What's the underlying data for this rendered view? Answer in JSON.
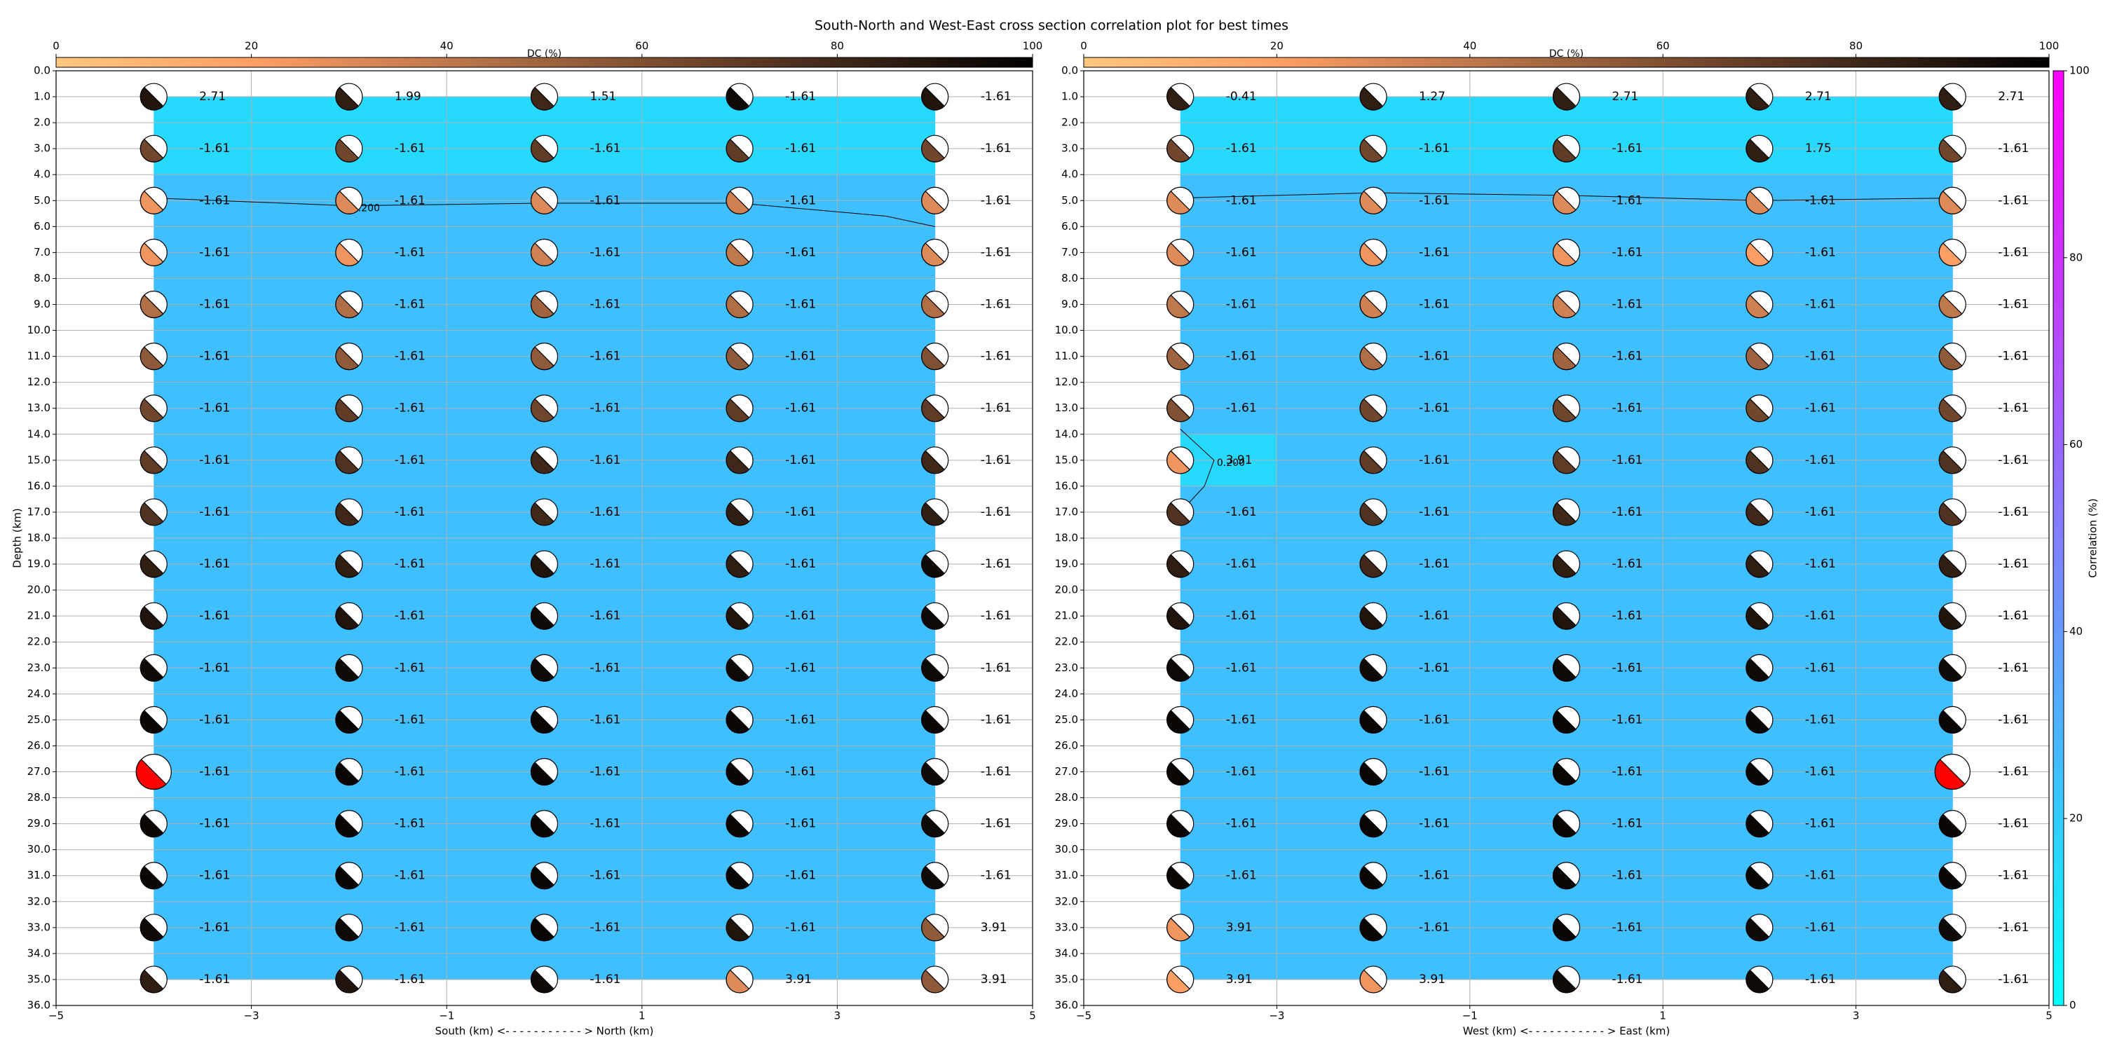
{
  "title": "South-North and West-East cross section correlation plot for best times",
  "chart_data": [
    {
      "type": "beachball_section",
      "xlabel": "South (km) <- - - - - - - - - - - > North (km)",
      "ylabel": "Depth (km)",
      "xlim": [
        -5,
        5
      ],
      "xticks": [
        {
          "value": -5,
          "label": "−5"
        },
        {
          "value": -3,
          "label": "−3"
        },
        {
          "value": -1,
          "label": "−1"
        },
        1,
        3,
        5
      ],
      "ylim": [
        36,
        0
      ],
      "yticks": [
        {
          "value": 0,
          "label": "0.0"
        },
        {
          "value": 1,
          "label": "1.0"
        },
        {
          "value": 2,
          "label": "2.0"
        },
        {
          "value": 3,
          "label": "3.0"
        },
        {
          "value": 4,
          "label": "4.0"
        },
        {
          "value": 5,
          "label": "5.0"
        },
        {
          "value": 6,
          "label": "6.0"
        },
        {
          "value": 7,
          "label": "7.0"
        },
        {
          "value": 8,
          "label": "8.0"
        },
        {
          "value": 9,
          "label": "9.0"
        },
        {
          "value": 10,
          "label": "10.0"
        },
        {
          "value": 11,
          "label": "11.0"
        },
        {
          "value": 12,
          "label": "12.0"
        },
        {
          "value": 13,
          "label": "13.0"
        },
        {
          "value": 14,
          "label": "14.0"
        },
        {
          "value": 15,
          "label": "15.0"
        },
        {
          "value": 16,
          "label": "16.0"
        },
        {
          "value": 17,
          "label": "17.0"
        },
        {
          "value": 18,
          "label": "18.0"
        },
        {
          "value": 19,
          "label": "19.0"
        },
        {
          "value": 20,
          "label": "20.0"
        },
        {
          "value": 21,
          "label": "21.0"
        },
        {
          "value": 22,
          "label": "22.0"
        },
        {
          "value": 23,
          "label": "23.0"
        },
        {
          "value": 24,
          "label": "24.0"
        },
        {
          "value": 25,
          "label": "25.0"
        },
        {
          "value": 26,
          "label": "26.0"
        },
        {
          "value": 27,
          "label": "27.0"
        },
        {
          "value": 28,
          "label": "28.0"
        },
        {
          "value": 29,
          "label": "29.0"
        },
        {
          "value": 30,
          "label": "30.0"
        },
        {
          "value": 31,
          "label": "31.0"
        },
        {
          "value": 32,
          "label": "32.0"
        },
        {
          "value": 33,
          "label": "33.0"
        },
        {
          "value": 34,
          "label": "34.0"
        },
        {
          "value": 35,
          "label": "35.0"
        },
        {
          "value": 36,
          "label": "36.0"
        }
      ],
      "grid": true,
      "x": [
        -4,
        -2,
        0,
        2,
        4
      ],
      "depths": [
        1,
        3,
        5,
        7,
        9,
        11,
        13,
        15,
        17,
        19,
        21,
        23,
        25,
        27,
        29,
        31,
        33,
        35
      ],
      "values": [
        [
          2.71,
          1.99,
          1.51,
          -1.61,
          -1.61
        ],
        [
          -1.61,
          -1.61,
          -1.61,
          -1.61,
          -1.61
        ],
        [
          -1.61,
          -1.61,
          -1.61,
          -1.61,
          -1.61
        ],
        [
          -1.61,
          -1.61,
          -1.61,
          -1.61,
          -1.61
        ],
        [
          -1.61,
          -1.61,
          -1.61,
          -1.61,
          -1.61
        ],
        [
          -1.61,
          -1.61,
          -1.61,
          -1.61,
          -1.61
        ],
        [
          -1.61,
          -1.61,
          -1.61,
          -1.61,
          -1.61
        ],
        [
          -1.61,
          -1.61,
          -1.61,
          -1.61,
          -1.61
        ],
        [
          -1.61,
          -1.61,
          -1.61,
          -1.61,
          -1.61
        ],
        [
          -1.61,
          -1.61,
          -1.61,
          -1.61,
          -1.61
        ],
        [
          -1.61,
          -1.61,
          -1.61,
          -1.61,
          -1.61
        ],
        [
          -1.61,
          -1.61,
          -1.61,
          -1.61,
          -1.61
        ],
        [
          -1.61,
          -1.61,
          -1.61,
          -1.61,
          -1.61
        ],
        [
          -1.61,
          -1.61,
          -1.61,
          -1.61,
          -1.61
        ],
        [
          -1.61,
          -1.61,
          -1.61,
          -1.61,
          -1.61
        ],
        [
          -1.61,
          -1.61,
          -1.61,
          -1.61,
          -1.61
        ],
        [
          -1.61,
          -1.61,
          -1.61,
          -1.61,
          3.91
        ],
        [
          -1.61,
          -1.61,
          -1.61,
          3.91,
          3.91
        ]
      ],
      "dc": [
        [
          90,
          85,
          80,
          95,
          90
        ],
        [
          65,
          65,
          70,
          70,
          65
        ],
        [
          25,
          30,
          30,
          35,
          30
        ],
        [
          25,
          25,
          35,
          40,
          30
        ],
        [
          45,
          45,
          50,
          45,
          45
        ],
        [
          55,
          55,
          55,
          55,
          60
        ],
        [
          65,
          70,
          65,
          70,
          70
        ],
        [
          70,
          75,
          80,
          80,
          80
        ],
        [
          75,
          80,
          80,
          85,
          85
        ],
        [
          85,
          85,
          90,
          85,
          95
        ],
        [
          90,
          90,
          95,
          90,
          95
        ],
        [
          95,
          95,
          95,
          95,
          95
        ],
        [
          97,
          97,
          97,
          97,
          97
        ],
        [
          97,
          97,
          97,
          97,
          95
        ],
        [
          97,
          97,
          97,
          97,
          95
        ],
        [
          97,
          97,
          97,
          97,
          95
        ],
        [
          95,
          95,
          97,
          90,
          55
        ],
        [
          85,
          90,
          95,
          30,
          55
        ]
      ],
      "correlation": [
        [
          15,
          15,
          15,
          15,
          15
        ],
        [
          15,
          15,
          15,
          15,
          15
        ],
        [
          25,
          25,
          25,
          25,
          25
        ],
        [
          25,
          25,
          25,
          25,
          25
        ],
        [
          25,
          25,
          25,
          25,
          25
        ],
        [
          25,
          25,
          25,
          25,
          25
        ],
        [
          25,
          25,
          25,
          25,
          25
        ],
        [
          25,
          25,
          25,
          25,
          25
        ],
        [
          25,
          25,
          25,
          25,
          25
        ],
        [
          25,
          25,
          25,
          25,
          25
        ],
        [
          25,
          25,
          25,
          25,
          25
        ],
        [
          25,
          25,
          25,
          25,
          25
        ],
        [
          25,
          25,
          25,
          25,
          25
        ],
        [
          25,
          25,
          25,
          25,
          25
        ],
        [
          25,
          25,
          25,
          25,
          25
        ],
        [
          25,
          25,
          25,
          25,
          25
        ],
        [
          25,
          25,
          25,
          25,
          25
        ],
        [
          25,
          25,
          25,
          25,
          25
        ]
      ],
      "field_cmap": "cool",
      "highlight": {
        "x": -4,
        "depth": 27,
        "color": "#ff0000"
      },
      "contours": [
        {
          "label": "0.200",
          "x": [
            -4,
            -2,
            0,
            2,
            3.5,
            4
          ],
          "y": [
            4.9,
            5.2,
            5.1,
            5.1,
            5.6,
            6.0
          ]
        }
      ],
      "dc_colorbar": {
        "label": "DC (%)",
        "lim": [
          0,
          100
        ],
        "ticks": [
          0,
          20,
          40,
          60,
          80,
          100
        ],
        "cmap": "copper_r"
      }
    },
    {
      "type": "beachball_section",
      "xlabel": "West (km) <- - - - - - - - - - - > East (km)",
      "xlim": [
        -5,
        5
      ],
      "xticks": [
        {
          "value": -5,
          "label": "−5"
        },
        {
          "value": -3,
          "label": "−3"
        },
        {
          "value": -1,
          "label": "−1"
        },
        1,
        3,
        5
      ],
      "ylim": [
        36,
        0
      ],
      "yticks": [
        {
          "value": 0,
          "label": "0.0"
        },
        {
          "value": 1,
          "label": "1.0"
        },
        {
          "value": 2,
          "label": "2.0"
        },
        {
          "value": 3,
          "label": "3.0"
        },
        {
          "value": 4,
          "label": "4.0"
        },
        {
          "value": 5,
          "label": "5.0"
        },
        {
          "value": 6,
          "label": "6.0"
        },
        {
          "value": 7,
          "label": "7.0"
        },
        {
          "value": 8,
          "label": "8.0"
        },
        {
          "value": 9,
          "label": "9.0"
        },
        {
          "value": 10,
          "label": "10.0"
        },
        {
          "value": 11,
          "label": "11.0"
        },
        {
          "value": 12,
          "label": "12.0"
        },
        {
          "value": 13,
          "label": "13.0"
        },
        {
          "value": 14,
          "label": "14.0"
        },
        {
          "value": 15,
          "label": "15.0"
        },
        {
          "value": 16,
          "label": "16.0"
        },
        {
          "value": 17,
          "label": "17.0"
        },
        {
          "value": 18,
          "label": "18.0"
        },
        {
          "value": 19,
          "label": "19.0"
        },
        {
          "value": 20,
          "label": "20.0"
        },
        {
          "value": 21,
          "label": "21.0"
        },
        {
          "value": 22,
          "label": "22.0"
        },
        {
          "value": 23,
          "label": "23.0"
        },
        {
          "value": 24,
          "label": "24.0"
        },
        {
          "value": 25,
          "label": "25.0"
        },
        {
          "value": 26,
          "label": "26.0"
        },
        {
          "value": 27,
          "label": "27.0"
        },
        {
          "value": 28,
          "label": "28.0"
        },
        {
          "value": 29,
          "label": "29.0"
        },
        {
          "value": 30,
          "label": "30.0"
        },
        {
          "value": 31,
          "label": "31.0"
        },
        {
          "value": 32,
          "label": "32.0"
        },
        {
          "value": 33,
          "label": "33.0"
        },
        {
          "value": 34,
          "label": "34.0"
        },
        {
          "value": 35,
          "label": "35.0"
        },
        {
          "value": 36,
          "label": "36.0"
        }
      ],
      "grid": true,
      "x": [
        -4,
        -2,
        0,
        2,
        4
      ],
      "depths": [
        1,
        3,
        5,
        7,
        9,
        11,
        13,
        15,
        17,
        19,
        21,
        23,
        25,
        27,
        29,
        31,
        33,
        35
      ],
      "values": [
        [
          -0.41,
          1.27,
          2.71,
          2.71,
          2.71
        ],
        [
          -1.61,
          -1.61,
          -1.61,
          1.75,
          -1.61
        ],
        [
          -1.61,
          -1.61,
          -1.61,
          -1.61,
          -1.61
        ],
        [
          -1.61,
          -1.61,
          -1.61,
          -1.61,
          -1.61
        ],
        [
          -1.61,
          -1.61,
          -1.61,
          -1.61,
          -1.61
        ],
        [
          -1.61,
          -1.61,
          -1.61,
          -1.61,
          -1.61
        ],
        [
          -1.61,
          -1.61,
          -1.61,
          -1.61,
          -1.61
        ],
        [
          3.91,
          -1.61,
          -1.61,
          -1.61,
          -1.61
        ],
        [
          -1.61,
          -1.61,
          -1.61,
          -1.61,
          -1.61
        ],
        [
          -1.61,
          -1.61,
          -1.61,
          -1.61,
          -1.61
        ],
        [
          -1.61,
          -1.61,
          -1.61,
          -1.61,
          -1.61
        ],
        [
          -1.61,
          -1.61,
          -1.61,
          -1.61,
          -1.61
        ],
        [
          -1.61,
          -1.61,
          -1.61,
          -1.61,
          -1.61
        ],
        [
          -1.61,
          -1.61,
          -1.61,
          -1.61,
          -1.61
        ],
        [
          -1.61,
          -1.61,
          -1.61,
          -1.61,
          -1.61
        ],
        [
          -1.61,
          -1.61,
          -1.61,
          -1.61,
          -1.61
        ],
        [
          3.91,
          -1.61,
          -1.61,
          -1.61,
          -1.61
        ],
        [
          3.91,
          3.91,
          -1.61,
          -1.61,
          -1.61
        ]
      ],
      "dc": [
        [
          85,
          85,
          85,
          85,
          85
        ],
        [
          65,
          65,
          70,
          85,
          65
        ],
        [
          30,
          30,
          30,
          30,
          30
        ],
        [
          30,
          25,
          25,
          20,
          20
        ],
        [
          40,
          35,
          35,
          35,
          40
        ],
        [
          50,
          45,
          50,
          50,
          55
        ],
        [
          60,
          65,
          65,
          65,
          65
        ],
        [
          25,
          70,
          70,
          75,
          75
        ],
        [
          75,
          75,
          80,
          80,
          75
        ],
        [
          85,
          80,
          85,
          85,
          85
        ],
        [
          90,
          90,
          90,
          90,
          90
        ],
        [
          95,
          95,
          95,
          95,
          95
        ],
        [
          97,
          97,
          97,
          97,
          97
        ],
        [
          97,
          97,
          97,
          97,
          97
        ],
        [
          97,
          97,
          97,
          97,
          97
        ],
        [
          97,
          97,
          97,
          97,
          97
        ],
        [
          25,
          97,
          97,
          95,
          95
        ],
        [
          20,
          25,
          95,
          95,
          85
        ]
      ],
      "correlation": [
        [
          15,
          15,
          15,
          15,
          15
        ],
        [
          15,
          15,
          15,
          15,
          15
        ],
        [
          25,
          25,
          25,
          25,
          25
        ],
        [
          25,
          25,
          25,
          25,
          25
        ],
        [
          25,
          25,
          25,
          25,
          25
        ],
        [
          25,
          25,
          25,
          25,
          25
        ],
        [
          25,
          25,
          25,
          25,
          25
        ],
        [
          15,
          25,
          25,
          25,
          25
        ],
        [
          25,
          25,
          25,
          25,
          25
        ],
        [
          25,
          25,
          25,
          25,
          25
        ],
        [
          25,
          25,
          25,
          25,
          25
        ],
        [
          25,
          25,
          25,
          25,
          25
        ],
        [
          25,
          25,
          25,
          25,
          25
        ],
        [
          25,
          25,
          25,
          25,
          25
        ],
        [
          25,
          25,
          25,
          25,
          25
        ],
        [
          25,
          25,
          25,
          25,
          25
        ],
        [
          25,
          25,
          25,
          25,
          25
        ],
        [
          25,
          25,
          25,
          25,
          25
        ]
      ],
      "field_cmap": "cool",
      "highlight": {
        "x": 4,
        "depth": 27,
        "color": "#ff0000"
      },
      "contours": [
        {
          "x": [
            -4,
            -2,
            0,
            2,
            4
          ],
          "y": [
            4.9,
            4.7,
            4.8,
            5.0,
            4.9
          ]
        },
        {
          "label": "0.200",
          "x": [
            -4,
            -3.65,
            -3.75,
            -4
          ],
          "y": [
            13.8,
            15,
            16,
            17
          ]
        }
      ],
      "dc_colorbar": {
        "label": "DC (%)",
        "lim": [
          0,
          100
        ],
        "ticks": [
          0,
          20,
          40,
          60,
          80,
          100
        ],
        "cmap": "copper_r"
      },
      "correlation_colorbar": {
        "label": "Correlation (%)",
        "lim": [
          0,
          100
        ],
        "ticks": [
          0,
          20,
          40,
          60,
          80,
          100
        ],
        "cmap": "cool"
      }
    }
  ]
}
